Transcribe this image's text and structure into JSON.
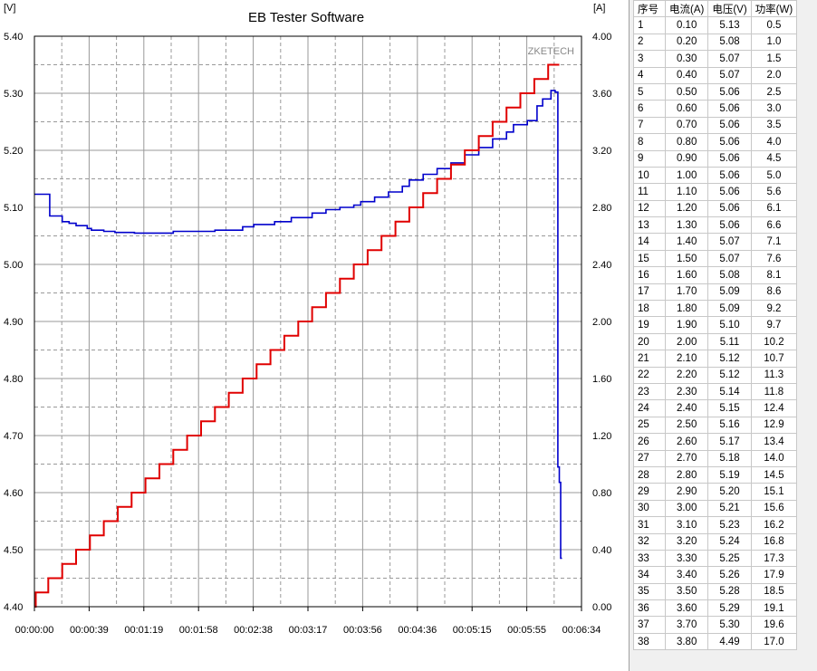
{
  "chart_data": {
    "type": "line",
    "title": "EB Tester Software",
    "watermark": "ZKETECH",
    "left_axis_unit": "[V]",
    "right_axis_unit": "[A]",
    "x_tick_labels": [
      "00:00:00",
      "00:00:39",
      "00:01:19",
      "00:01:58",
      "00:02:38",
      "00:03:17",
      "00:03:56",
      "00:04:36",
      "00:05:15",
      "00:05:55",
      "00:06:34"
    ],
    "xlim_seconds": [
      0,
      394
    ],
    "y_left_ticks": [
      "5.40",
      "5.30",
      "5.20",
      "5.10",
      "5.00",
      "4.90",
      "4.80",
      "4.70",
      "4.60",
      "4.50",
      "4.40"
    ],
    "ylim_left": [
      4.4,
      5.4
    ],
    "y_right_ticks": [
      "4.00",
      "3.60",
      "3.20",
      "2.80",
      "2.40",
      "2.00",
      "1.60",
      "1.20",
      "0.80",
      "0.40",
      "0.00"
    ],
    "ylim_right": [
      0.0,
      4.0
    ],
    "grid": true,
    "series": [
      {
        "axis": "left",
        "color": "#0000cc",
        "x_seconds": [
          0,
          11,
          11,
          20,
          20,
          25,
          25,
          30,
          30,
          38,
          38,
          41,
          41,
          50,
          50,
          58,
          58,
          72,
          72,
          100,
          100,
          130,
          130,
          150,
          150,
          158,
          158,
          173,
          173,
          185,
          185,
          200,
          200,
          210,
          210,
          220,
          220,
          230,
          230,
          235,
          235,
          245,
          245,
          255,
          255,
          265,
          265,
          270,
          270,
          280,
          280,
          290,
          290,
          300,
          300,
          310,
          310,
          320,
          320,
          330,
          330,
          340,
          340,
          345,
          345,
          355,
          355,
          362,
          362,
          366,
          366,
          372,
          372,
          375,
          375,
          377,
          377,
          378,
          378,
          379,
          379,
          380
        ],
        "values": [
          5.123,
          5.123,
          5.085,
          5.085,
          5.075,
          5.075,
          5.072,
          5.072,
          5.068,
          5.068,
          5.063,
          5.063,
          5.06,
          5.06,
          5.058,
          5.058,
          5.056,
          5.056,
          5.055,
          5.055,
          5.058,
          5.058,
          5.06,
          5.06,
          5.066,
          5.066,
          5.07,
          5.07,
          5.075,
          5.075,
          5.082,
          5.082,
          5.09,
          5.09,
          5.096,
          5.096,
          5.1,
          5.1,
          5.104,
          5.104,
          5.11,
          5.11,
          5.118,
          5.118,
          5.127,
          5.127,
          5.137,
          5.137,
          5.148,
          5.148,
          5.158,
          5.158,
          5.168,
          5.168,
          5.178,
          5.178,
          5.192,
          5.192,
          5.205,
          5.205,
          5.22,
          5.22,
          5.232,
          5.232,
          5.245,
          5.245,
          5.252,
          5.252,
          5.278,
          5.278,
          5.29,
          5.29,
          5.305,
          5.305,
          5.302,
          5.302,
          4.645,
          4.645,
          4.618,
          4.618,
          4.485,
          4.485
        ]
      },
      {
        "axis": "right",
        "color": "#e00000",
        "x_seconds": [
          0,
          1,
          1,
          10,
          10,
          20,
          20,
          30,
          30,
          40,
          40,
          50,
          50,
          60,
          60,
          70,
          70,
          80,
          80,
          90,
          90,
          100,
          100,
          110,
          110,
          120,
          120,
          130,
          130,
          140,
          140,
          150,
          150,
          160,
          160,
          170,
          170,
          180,
          180,
          190,
          190,
          200,
          200,
          210,
          210,
          220,
          220,
          230,
          230,
          240,
          240,
          250,
          250,
          260,
          260,
          270,
          270,
          280,
          280,
          290,
          290,
          300,
          300,
          310,
          310,
          320,
          320,
          330,
          330,
          340,
          340,
          350,
          350,
          360,
          360,
          370,
          370,
          378
        ],
        "values": [
          0.0,
          0.0,
          0.1,
          0.1,
          0.2,
          0.2,
          0.3,
          0.3,
          0.4,
          0.4,
          0.5,
          0.5,
          0.6,
          0.6,
          0.7,
          0.7,
          0.8,
          0.8,
          0.9,
          0.9,
          1.0,
          1.0,
          1.1,
          1.1,
          1.2,
          1.2,
          1.3,
          1.3,
          1.4,
          1.4,
          1.5,
          1.5,
          1.6,
          1.6,
          1.7,
          1.7,
          1.8,
          1.8,
          1.9,
          1.9,
          2.0,
          2.0,
          2.1,
          2.1,
          2.2,
          2.2,
          2.3,
          2.3,
          2.4,
          2.4,
          2.5,
          2.5,
          2.6,
          2.6,
          2.7,
          2.7,
          2.8,
          2.8,
          2.9,
          2.9,
          3.0,
          3.0,
          3.1,
          3.1,
          3.2,
          3.2,
          3.3,
          3.3,
          3.4,
          3.4,
          3.5,
          3.5,
          3.6,
          3.6,
          3.7,
          3.7,
          3.8,
          3.8
        ]
      }
    ]
  },
  "table": {
    "headers": [
      "序号",
      "电流(A)",
      "电压(V)",
      "功率(W)"
    ],
    "rows": [
      [
        "1",
        "0.10",
        "5.13",
        "0.5"
      ],
      [
        "2",
        "0.20",
        "5.08",
        "1.0"
      ],
      [
        "3",
        "0.30",
        "5.07",
        "1.5"
      ],
      [
        "4",
        "0.40",
        "5.07",
        "2.0"
      ],
      [
        "5",
        "0.50",
        "5.06",
        "2.5"
      ],
      [
        "6",
        "0.60",
        "5.06",
        "3.0"
      ],
      [
        "7",
        "0.70",
        "5.06",
        "3.5"
      ],
      [
        "8",
        "0.80",
        "5.06",
        "4.0"
      ],
      [
        "9",
        "0.90",
        "5.06",
        "4.5"
      ],
      [
        "10",
        "1.00",
        "5.06",
        "5.0"
      ],
      [
        "11",
        "1.10",
        "5.06",
        "5.6"
      ],
      [
        "12",
        "1.20",
        "5.06",
        "6.1"
      ],
      [
        "13",
        "1.30",
        "5.06",
        "6.6"
      ],
      [
        "14",
        "1.40",
        "5.07",
        "7.1"
      ],
      [
        "15",
        "1.50",
        "5.07",
        "7.6"
      ],
      [
        "16",
        "1.60",
        "5.08",
        "8.1"
      ],
      [
        "17",
        "1.70",
        "5.09",
        "8.6"
      ],
      [
        "18",
        "1.80",
        "5.09",
        "9.2"
      ],
      [
        "19",
        "1.90",
        "5.10",
        "9.7"
      ],
      [
        "20",
        "2.00",
        "5.11",
        "10.2"
      ],
      [
        "21",
        "2.10",
        "5.12",
        "10.7"
      ],
      [
        "22",
        "2.20",
        "5.12",
        "11.3"
      ],
      [
        "23",
        "2.30",
        "5.14",
        "11.8"
      ],
      [
        "24",
        "2.40",
        "5.15",
        "12.4"
      ],
      [
        "25",
        "2.50",
        "5.16",
        "12.9"
      ],
      [
        "26",
        "2.60",
        "5.17",
        "13.4"
      ],
      [
        "27",
        "2.70",
        "5.18",
        "14.0"
      ],
      [
        "28",
        "2.80",
        "5.19",
        "14.5"
      ],
      [
        "29",
        "2.90",
        "5.20",
        "15.1"
      ],
      [
        "30",
        "3.00",
        "5.21",
        "15.6"
      ],
      [
        "31",
        "3.10",
        "5.23",
        "16.2"
      ],
      [
        "32",
        "3.20",
        "5.24",
        "16.8"
      ],
      [
        "33",
        "3.30",
        "5.25",
        "17.3"
      ],
      [
        "34",
        "3.40",
        "5.26",
        "17.9"
      ],
      [
        "35",
        "3.50",
        "5.28",
        "18.5"
      ],
      [
        "36",
        "3.60",
        "5.29",
        "19.1"
      ],
      [
        "37",
        "3.70",
        "5.30",
        "19.6"
      ],
      [
        "38",
        "3.80",
        "4.49",
        "17.0"
      ]
    ]
  }
}
